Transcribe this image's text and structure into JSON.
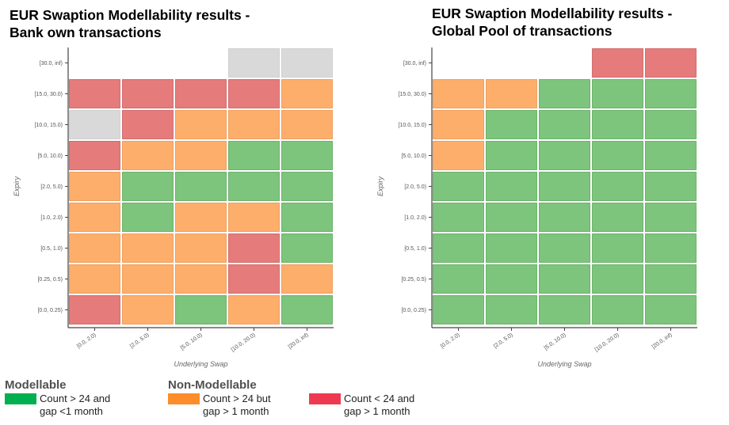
{
  "titles": {
    "left": [
      "EUR Swaption Modellability results -",
      "Bank own transactions"
    ],
    "right": [
      "EUR Swaption Modellability results -",
      "Global Pool of transactions"
    ]
  },
  "colors": {
    "green": "#7dc47c",
    "orange": "#fdae6b",
    "red": "#e57b7b",
    "grey": "#d9d9d9"
  },
  "legend": {
    "modellable": {
      "heading": "Modellable",
      "color": "#00b050",
      "lines": [
        "Count > 24 and",
        "gap <1 month"
      ]
    },
    "non_modellable": {
      "heading": "Non-Modellable",
      "orange_color": "#fd8c2a",
      "orange_lines": [
        "Count > 24 but",
        "gap > 1 month"
      ],
      "red_color": "#ee3a50",
      "red_lines": [
        "Count < 24 and",
        "gap > 1 month"
      ]
    }
  },
  "chart_data": [
    {
      "type": "heatmap",
      "title": "EUR Swaption Modellability results - Bank own transactions",
      "xlabel": "Underlying Swap",
      "ylabel": "Expiry",
      "x_categories": [
        "[0.0, 2.0)",
        "[2.0, 5.0)",
        "[5.0, 10.0)",
        "[10.0, 20.0)",
        "[20.0, inf)"
      ],
      "y_categories": [
        "[30.0, inf)",
        "[15.0, 30.0)",
        "[10.0, 15.0)",
        "[5.0, 10.0)",
        "[2.0, 5.0)",
        "[1.0, 2.0)",
        "[0.5, 1.0)",
        "[0.25, 0.5)",
        "[0.0, 0.25)"
      ],
      "cells": [
        [
          "none",
          "none",
          "none",
          "grey",
          "grey"
        ],
        [
          "red",
          "red",
          "red",
          "red",
          "orange"
        ],
        [
          "grey",
          "red",
          "orange",
          "orange",
          "orange"
        ],
        [
          "red",
          "orange",
          "orange",
          "green",
          "green"
        ],
        [
          "orange",
          "green",
          "green",
          "green",
          "green"
        ],
        [
          "orange",
          "green",
          "orange",
          "orange",
          "green"
        ],
        [
          "orange",
          "orange",
          "orange",
          "red",
          "green"
        ],
        [
          "orange",
          "orange",
          "orange",
          "red",
          "orange"
        ],
        [
          "red",
          "orange",
          "green",
          "orange",
          "green"
        ]
      ]
    },
    {
      "type": "heatmap",
      "title": "EUR Swaption Modellability results - Global Pool of transactions",
      "xlabel": "Underlying Swap",
      "ylabel": "Expiry",
      "x_categories": [
        "[0.0, 2.0)",
        "[2.0, 5.0)",
        "[5.0, 10.0)",
        "[10.0, 20.0)",
        "[20.0, inf)"
      ],
      "y_categories": [
        "[30.0, inf)",
        "[15.0, 30.0)",
        "[10.0, 15.0)",
        "[5.0, 10.0)",
        "[2.0, 5.0)",
        "[1.0, 2.0)",
        "[0.5, 1.0)",
        "[0.25, 0.5)",
        "[0.0, 0.25)"
      ],
      "cells": [
        [
          "none",
          "none",
          "none",
          "red",
          "red"
        ],
        [
          "orange",
          "orange",
          "green",
          "green",
          "green"
        ],
        [
          "orange",
          "green",
          "green",
          "green",
          "green"
        ],
        [
          "orange",
          "green",
          "green",
          "green",
          "green"
        ],
        [
          "green",
          "green",
          "green",
          "green",
          "green"
        ],
        [
          "green",
          "green",
          "green",
          "green",
          "green"
        ],
        [
          "green",
          "green",
          "green",
          "green",
          "green"
        ],
        [
          "green",
          "green",
          "green",
          "green",
          "green"
        ],
        [
          "green",
          "green",
          "green",
          "green",
          "green"
        ]
      ]
    }
  ]
}
